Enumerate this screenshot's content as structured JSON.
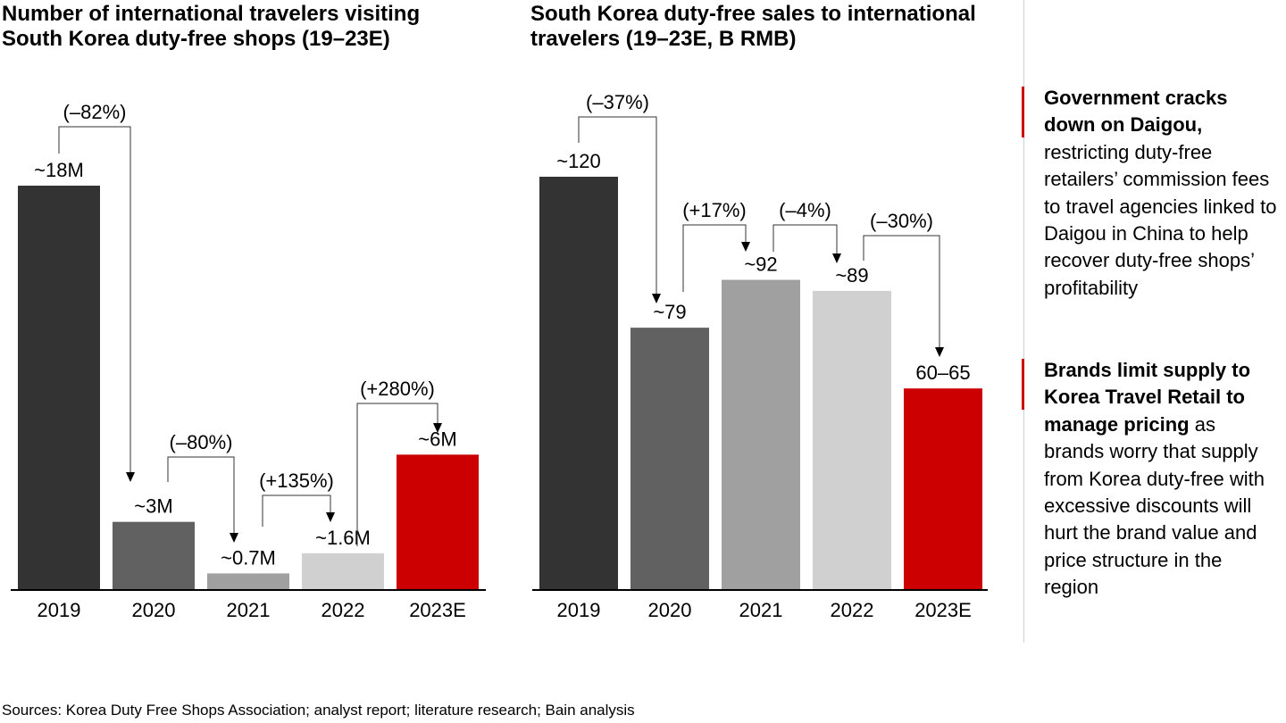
{
  "chart_data": [
    {
      "type": "bar",
      "title": "Number of international travelers visiting South Korea duty-free shops (19–23E)",
      "categories": [
        "2019",
        "2020",
        "2021",
        "2022",
        "2023E"
      ],
      "values": [
        18,
        3,
        0.7,
        1.6,
        6
      ],
      "value_labels": [
        "~18M",
        "~3M",
        "~0.7M",
        "~1.6M",
        "~6M"
      ],
      "changes": [
        "(–82%)",
        "(–80%)",
        "(+135%)",
        "(+280%)"
      ],
      "ylabel": "",
      "xlabel": "",
      "ylim": [
        0,
        18
      ],
      "grid": false
    },
    {
      "type": "bar",
      "title": "South Korea duty-free sales to international travelers (19–23E, B RMB)",
      "categories": [
        "2019",
        "2020",
        "2021",
        "2022",
        "2023E"
      ],
      "values": [
        120,
        79,
        92,
        89,
        62.5
      ],
      "value_labels": [
        "~120",
        "~79",
        "~92",
        "~89",
        "60–65"
      ],
      "changes": [
        "(–37%)",
        "(+17%)",
        "(–4%)",
        "(–30%)"
      ],
      "ylabel": "",
      "xlabel": "",
      "ylim": [
        8,
        120
      ],
      "grid": false
    }
  ],
  "colors": [
    "#333333",
    "#616161",
    "#a0a0a0",
    "#d0d0d0",
    "#cc0000"
  ],
  "notes": [
    {
      "bold": "Government cracks down on Daigou,",
      "text": " restricting duty-free retailers’ commission fees to travel agencies linked to Daigou in China to help recover duty-free shops’ profitability"
    },
    {
      "bold": "Brands limit supply to Korea Travel Retail to manage pricing",
      "text": " as brands worry that supply from Korea duty-free with excessive discounts will hurt the brand value and price structure in the region"
    }
  ],
  "source": "Sources: Korea Duty Free Shops Association; analyst report; literature research; Bain analysis"
}
